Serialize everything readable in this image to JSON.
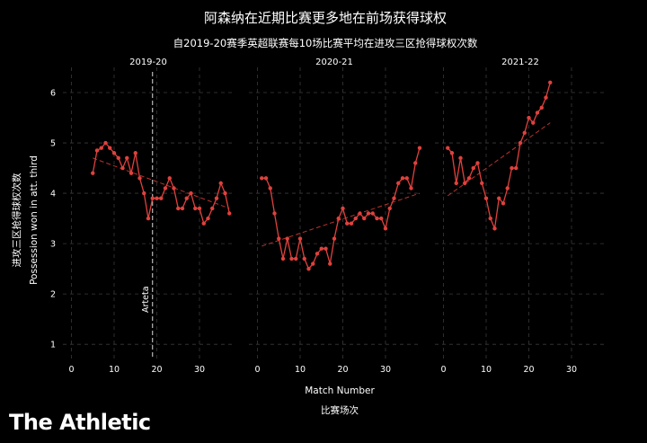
{
  "title": "阿森纳在近期比赛更多地在前场获得球权",
  "subtitle": "自2019-20赛季英超联赛每10场比赛平均在进攻三区抢得球权次数",
  "logo": "The Athletic",
  "colors": {
    "background": "#000000",
    "line": "#e0413d",
    "trend": "#b8322f",
    "grid": "#3a3a3a",
    "text": "#ffffff"
  },
  "chart_data": {
    "type": "line",
    "xlabel": "Match Number",
    "xlabel_cn": "比赛场次",
    "ylabel": "Possession won in att. third",
    "ylabel_cn": "进攻三区抢得球权次数",
    "ylim": [
      0.7,
      6.5
    ],
    "yticks": [
      1,
      2,
      3,
      4,
      5,
      6
    ],
    "xlim": [
      -2,
      38
    ],
    "xticks": [
      0,
      10,
      20,
      30
    ],
    "grid": true,
    "panels": [
      {
        "name": "2019-20",
        "x": [
          5,
          6,
          7,
          8,
          9,
          10,
          11,
          12,
          13,
          14,
          15,
          16,
          17,
          18,
          19,
          20,
          21,
          22,
          23,
          24,
          25,
          26,
          27,
          28,
          29,
          30,
          31,
          32,
          33,
          34,
          35,
          36,
          37
        ],
        "y": [
          4.4,
          4.85,
          4.9,
          5.0,
          4.9,
          4.8,
          4.7,
          4.5,
          4.7,
          4.4,
          4.8,
          4.3,
          4.0,
          3.5,
          3.9,
          3.9,
          3.9,
          4.1,
          4.3,
          4.1,
          3.7,
          3.7,
          3.9,
          4.0,
          3.7,
          3.7,
          3.4,
          3.5,
          3.7,
          3.9,
          4.2,
          4.0,
          3.6
        ],
        "trend": [
          [
            5,
            4.7
          ],
          [
            37,
            3.7
          ]
        ],
        "annotation": {
          "label": "Arteta",
          "x": 19
        }
      },
      {
        "name": "2020-21",
        "x": [
          1,
          2,
          3,
          4,
          5,
          6,
          7,
          8,
          9,
          10,
          11,
          12,
          13,
          14,
          15,
          16,
          17,
          18,
          19,
          20,
          21,
          22,
          23,
          24,
          25,
          26,
          27,
          28,
          29,
          30,
          31,
          32,
          33,
          34,
          35,
          36,
          37,
          38
        ],
        "y": [
          4.3,
          4.3,
          4.1,
          3.6,
          3.1,
          2.7,
          3.1,
          2.7,
          2.7,
          3.1,
          2.7,
          2.5,
          2.6,
          2.8,
          2.9,
          2.9,
          2.6,
          3.1,
          3.5,
          3.7,
          3.4,
          3.4,
          3.5,
          3.6,
          3.5,
          3.6,
          3.6,
          3.5,
          3.5,
          3.3,
          3.7,
          3.9,
          4.2,
          4.3,
          4.3,
          4.1,
          4.6,
          4.9
        ],
        "trend": [
          [
            1,
            2.95
          ],
          [
            38,
            4.0
          ]
        ]
      },
      {
        "name": "2021-22",
        "x": [
          1,
          2,
          3,
          4,
          5,
          6,
          7,
          8,
          9,
          10,
          11,
          12,
          13,
          14,
          15,
          16,
          17,
          18,
          19,
          20,
          21,
          22,
          23,
          24,
          25
        ],
        "y": [
          4.9,
          4.8,
          4.2,
          4.7,
          4.2,
          4.3,
          4.5,
          4.6,
          4.2,
          3.9,
          3.5,
          3.3,
          3.9,
          3.8,
          4.1,
          4.5,
          4.5,
          5.0,
          5.2,
          5.5,
          5.4,
          5.6,
          5.7,
          5.9,
          6.2
        ],
        "trend": [
          [
            1,
            3.95
          ],
          [
            25,
            5.4
          ]
        ]
      }
    ]
  }
}
